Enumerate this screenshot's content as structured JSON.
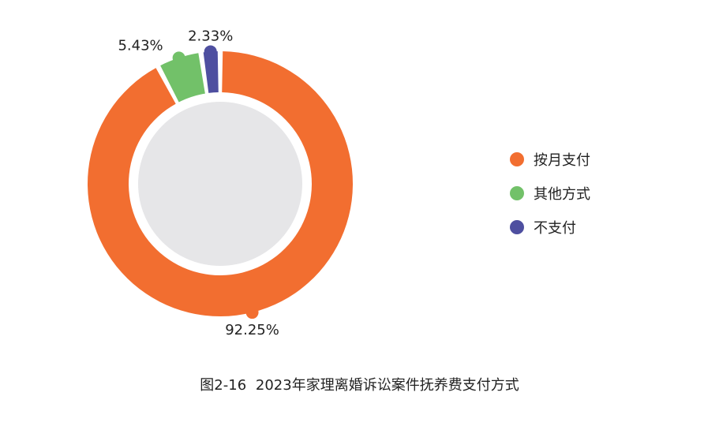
{
  "chart_data": {
    "type": "pie",
    "categories": [
      "按月支付",
      "其他方式",
      "不支付"
    ],
    "values": [
      92.25,
      5.43,
      2.33
    ],
    "value_labels": [
      "92.25%",
      "5.43%",
      "2.33%"
    ],
    "colors": [
      "#F26E30",
      "#72C169",
      "#4E4FA0"
    ],
    "center_color": "#E6E6E8",
    "legend_placement": "right"
  },
  "legend": {
    "items": [
      {
        "label": "按月支付",
        "color": "#F26E30"
      },
      {
        "label": "其他方式",
        "color": "#72C169"
      },
      {
        "label": "不支付",
        "color": "#4E4FA0"
      }
    ]
  },
  "caption": {
    "figure_no": "图2-16",
    "text": "2023年家理离婚诉讼案件抚养费支付方式"
  }
}
